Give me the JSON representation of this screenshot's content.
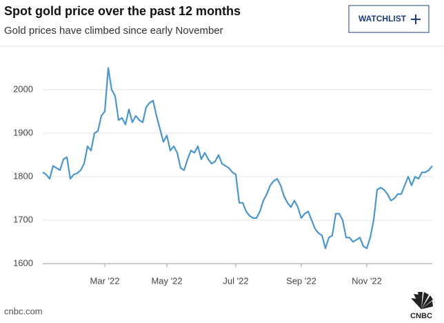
{
  "header": {
    "button": "WATCHLIST"
  },
  "chart_data": {
    "type": "line",
    "title": "Spot gold price over the past 12 months",
    "subtitle": "Gold prices have climbed since early November",
    "color": "#4a96cc",
    "values": [
      1810,
      1805,
      1795,
      1825,
      1820,
      1815,
      1840,
      1845,
      1795,
      1805,
      1808,
      1815,
      1830,
      1870,
      1860,
      1900,
      1905,
      1940,
      1950,
      2050,
      2000,
      1985,
      1930,
      1935,
      1920,
      1955,
      1925,
      1940,
      1930,
      1925,
      1960,
      1970,
      1975,
      1940,
      1910,
      1880,
      1895,
      1860,
      1870,
      1855,
      1820,
      1815,
      1840,
      1860,
      1855,
      1870,
      1840,
      1855,
      1840,
      1830,
      1835,
      1850,
      1830,
      1825,
      1820,
      1810,
      1805,
      1740,
      1740,
      1720,
      1710,
      1705,
      1705,
      1720,
      1745,
      1760,
      1780,
      1790,
      1795,
      1780,
      1755,
      1740,
      1730,
      1745,
      1730,
      1705,
      1715,
      1720,
      1700,
      1680,
      1670,
      1665,
      1635,
      1660,
      1665,
      1715,
      1715,
      1700,
      1660,
      1660,
      1650,
      1655,
      1660,
      1640,
      1635,
      1660,
      1700,
      1770,
      1775,
      1770,
      1760,
      1745,
      1750,
      1760,
      1760,
      1780,
      1800,
      1780,
      1800,
      1795,
      1810,
      1810,
      1815,
      1825
    ],
    "xlim": [
      0,
      113
    ],
    "xticks": [
      {
        "value": 18,
        "label": "Mar '22"
      },
      {
        "value": 36,
        "label": "May '22"
      },
      {
        "value": 56,
        "label": "Jul '22"
      },
      {
        "value": 75,
        "label": "Sep '22"
      },
      {
        "value": 94,
        "label": "Nov '22"
      }
    ],
    "ylim": [
      1600,
      2100
    ],
    "yticks": [
      1600,
      1700,
      1800,
      1900,
      2000
    ],
    "grid": true,
    "source": "cnbc.com",
    "logo_text": "CNBC"
  }
}
